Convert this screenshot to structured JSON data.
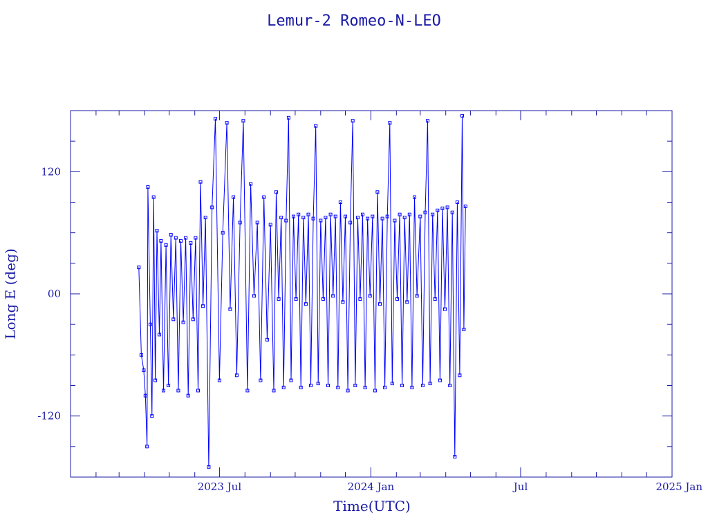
{
  "chart_data": {
    "type": "scatter",
    "title": "Lemur-2 Romeo-N-LEO",
    "xlabel": "Time(UTC)",
    "ylabel": "Long E (deg)",
    "xlim": [
      "2023-01-01",
      "2025-01-01"
    ],
    "ylim": [
      -180,
      180
    ],
    "y_ticks": [
      {
        "value": 120,
        "label": "120"
      },
      {
        "value": 0,
        "label": "00"
      },
      {
        "value": -120,
        "label": "-120"
      }
    ],
    "x_ticks": [
      {
        "value": "2023-07-01",
        "label": "2023 Jul"
      },
      {
        "value": "2024-01-01",
        "label": "2024 Jan"
      },
      {
        "value": "2024-07-01",
        "label": "Jul"
      },
      {
        "value": "2025-01-01",
        "label": "2025 Jan"
      }
    ],
    "grid": false,
    "colors": {
      "line": "#0000ff",
      "axis": "#1a1aa6"
    },
    "series": [
      {
        "marker": "square",
        "connected": true,
        "points": [
          [
            "2023-03-25",
            26
          ],
          [
            "2023-03-28",
            -60
          ],
          [
            "2023-03-31",
            -75
          ],
          [
            "2023-04-02",
            -100
          ],
          [
            "2023-04-04",
            -150
          ],
          [
            "2023-04-05",
            105
          ],
          [
            "2023-04-08",
            -30
          ],
          [
            "2023-04-10",
            -120
          ],
          [
            "2023-04-12",
            95
          ],
          [
            "2023-04-14",
            -85
          ],
          [
            "2023-04-16",
            62
          ],
          [
            "2023-04-19",
            -40
          ],
          [
            "2023-04-21",
            52
          ],
          [
            "2023-04-24",
            -95
          ],
          [
            "2023-04-27",
            48
          ],
          [
            "2023-04-30",
            -90
          ],
          [
            "2023-05-03",
            58
          ],
          [
            "2023-05-06",
            -25
          ],
          [
            "2023-05-09",
            55
          ],
          [
            "2023-05-12",
            -95
          ],
          [
            "2023-05-15",
            52
          ],
          [
            "2023-05-18",
            -28
          ],
          [
            "2023-05-21",
            55
          ],
          [
            "2023-05-24",
            -100
          ],
          [
            "2023-05-27",
            50
          ],
          [
            "2023-05-30",
            -25
          ],
          [
            "2023-06-02",
            55
          ],
          [
            "2023-06-05",
            -95
          ],
          [
            "2023-06-08",
            110
          ],
          [
            "2023-06-11",
            -12
          ],
          [
            "2023-06-14",
            75
          ],
          [
            "2023-06-18",
            -170
          ],
          [
            "2023-06-22",
            85
          ],
          [
            "2023-06-26",
            172
          ],
          [
            "2023-07-01",
            -85
          ],
          [
            "2023-07-05",
            60
          ],
          [
            "2023-07-10",
            168
          ],
          [
            "2023-07-14",
            -15
          ],
          [
            "2023-07-18",
            95
          ],
          [
            "2023-07-22",
            -80
          ],
          [
            "2023-07-26",
            70
          ],
          [
            "2023-07-30",
            170
          ],
          [
            "2023-08-04",
            -95
          ],
          [
            "2023-08-08",
            108
          ],
          [
            "2023-08-12",
            -2
          ],
          [
            "2023-08-16",
            70
          ],
          [
            "2023-08-20",
            -85
          ],
          [
            "2023-08-24",
            95
          ],
          [
            "2023-08-28",
            -45
          ],
          [
            "2023-09-01",
            68
          ],
          [
            "2023-09-05",
            -95
          ],
          [
            "2023-09-08",
            100
          ],
          [
            "2023-09-11",
            -5
          ],
          [
            "2023-09-14",
            75
          ],
          [
            "2023-09-17",
            -92
          ],
          [
            "2023-09-20",
            72
          ],
          [
            "2023-09-23",
            173
          ],
          [
            "2023-09-26",
            -85
          ],
          [
            "2023-09-29",
            76
          ],
          [
            "2023-10-02",
            -5
          ],
          [
            "2023-10-05",
            78
          ],
          [
            "2023-10-08",
            -92
          ],
          [
            "2023-10-11",
            75
          ],
          [
            "2023-10-14",
            -10
          ],
          [
            "2023-10-17",
            78
          ],
          [
            "2023-10-20",
            -90
          ],
          [
            "2023-10-23",
            74
          ],
          [
            "2023-10-26",
            165
          ],
          [
            "2023-10-29",
            -88
          ],
          [
            "2023-11-01",
            72
          ],
          [
            "2023-11-04",
            -5
          ],
          [
            "2023-11-07",
            75
          ],
          [
            "2023-11-10",
            -90
          ],
          [
            "2023-11-13",
            78
          ],
          [
            "2023-11-16",
            -2
          ],
          [
            "2023-11-19",
            76
          ],
          [
            "2023-11-22",
            -92
          ],
          [
            "2023-11-25",
            90
          ],
          [
            "2023-11-28",
            -8
          ],
          [
            "2023-12-01",
            76
          ],
          [
            "2023-12-04",
            -95
          ],
          [
            "2023-12-07",
            70
          ],
          [
            "2023-12-10",
            170
          ],
          [
            "2023-12-13",
            -90
          ],
          [
            "2023-12-16",
            75
          ],
          [
            "2023-12-19",
            -5
          ],
          [
            "2023-12-22",
            78
          ],
          [
            "2023-12-25",
            -92
          ],
          [
            "2023-12-28",
            74
          ],
          [
            "2023-12-31",
            -2
          ],
          [
            "2024-01-03",
            76
          ],
          [
            "2024-01-06",
            -95
          ],
          [
            "2024-01-09",
            100
          ],
          [
            "2024-01-12",
            -10
          ],
          [
            "2024-01-15",
            74
          ],
          [
            "2024-01-18",
            -92
          ],
          [
            "2024-01-21",
            76
          ],
          [
            "2024-01-24",
            168
          ],
          [
            "2024-01-27",
            -88
          ],
          [
            "2024-01-30",
            72
          ],
          [
            "2024-02-02",
            -5
          ],
          [
            "2024-02-05",
            78
          ],
          [
            "2024-02-08",
            -90
          ],
          [
            "2024-02-11",
            75
          ],
          [
            "2024-02-14",
            -8
          ],
          [
            "2024-02-17",
            78
          ],
          [
            "2024-02-20",
            -92
          ],
          [
            "2024-02-23",
            95
          ],
          [
            "2024-02-26",
            -2
          ],
          [
            "2024-03-01",
            76
          ],
          [
            "2024-03-04",
            -90
          ],
          [
            "2024-03-07",
            80
          ],
          [
            "2024-03-10",
            170
          ],
          [
            "2024-03-13",
            -88
          ],
          [
            "2024-03-16",
            78
          ],
          [
            "2024-03-19",
            -5
          ],
          [
            "2024-03-22",
            82
          ],
          [
            "2024-03-25",
            -85
          ],
          [
            "2024-03-28",
            84
          ],
          [
            "2024-03-31",
            -15
          ],
          [
            "2024-04-03",
            85
          ],
          [
            "2024-04-06",
            -90
          ],
          [
            "2024-04-09",
            80
          ],
          [
            "2024-04-12",
            -160
          ],
          [
            "2024-04-15",
            90
          ],
          [
            "2024-04-18",
            -80
          ],
          [
            "2024-04-21",
            175
          ],
          [
            "2024-04-23",
            -35
          ],
          [
            "2024-04-25",
            86
          ]
        ]
      }
    ]
  }
}
